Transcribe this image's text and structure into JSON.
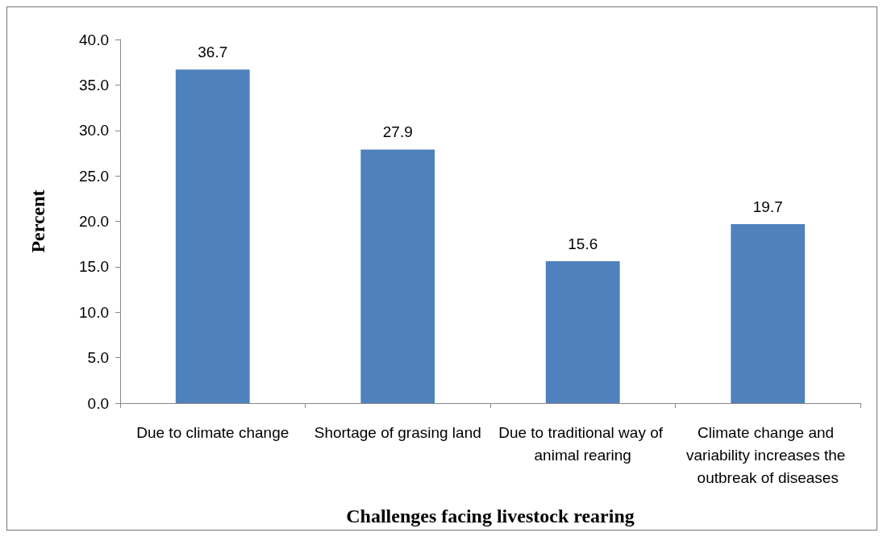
{
  "chart_data": {
    "type": "bar",
    "xlabel": "Challenges facing livestock rearing",
    "ylabel": "Percent",
    "categories": [
      "Due to climate change",
      "Shortage of grasing land",
      "Due to traditional way of animal rearing",
      "Climate change and variability increases the outbreak of diseases"
    ],
    "values": [
      36.7,
      27.9,
      15.6,
      19.7
    ],
    "color": "#4f81bd",
    "data_labels": true,
    "grid": false,
    "ylim": [
      0,
      40
    ],
    "yticks": [
      {
        "value": 0,
        "label": "0.0"
      },
      {
        "value": 5,
        "label": "5.0"
      },
      {
        "value": 10,
        "label": "10.0"
      },
      {
        "value": 15,
        "label": "15.0"
      },
      {
        "value": 20,
        "label": "20.0"
      },
      {
        "value": 25,
        "label": "25.0"
      },
      {
        "value": 30,
        "label": "30.0"
      },
      {
        "value": 35,
        "label": "35.0"
      },
      {
        "value": 40,
        "label": "40.0"
      }
    ]
  }
}
